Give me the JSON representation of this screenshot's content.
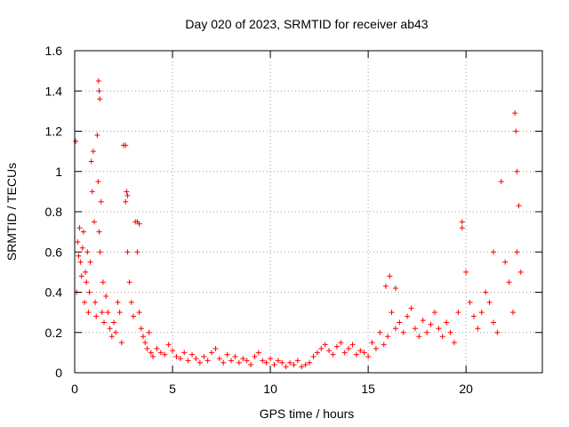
{
  "chart_data": {
    "type": "scatter",
    "title": "Day 020 of 2023, SRMTID for receiver ab43",
    "xlabel": "GPS time / hours",
    "ylabel": "SRMTID / TECUs",
    "xlim": [
      0,
      23.9
    ],
    "ylim": [
      0,
      1.6
    ],
    "xticks": [
      0,
      5,
      10,
      15,
      20
    ],
    "xtick_labels": [
      "0",
      "5",
      "10",
      "15",
      "20"
    ],
    "yticks": [
      0,
      0.2,
      0.4,
      0.6,
      0.8,
      1,
      1.2,
      1.4,
      1.6
    ],
    "ytick_labels": [
      "0",
      "0.2",
      "0.4",
      "0.6",
      "0.8",
      "1",
      "1.2",
      "1.4",
      "1.6"
    ],
    "grid": true,
    "marker": "+",
    "marker_color": "#ff0000",
    "series": [
      {
        "name": "SRMTID",
        "color": "#ff0000",
        "x": [
          0.05,
          0.1,
          0.15,
          0.2,
          0.25,
          0.3,
          0.35,
          0.4,
          0.45,
          0.5,
          0.55,
          0.6,
          0.65,
          0.7,
          0.75,
          0.8,
          0.85,
          0.9,
          0.95,
          1.0,
          1.05,
          1.1,
          1.15,
          1.2,
          1.25,
          1.3,
          1.35,
          1.4,
          1.45,
          1.5,
          1.6,
          1.7,
          1.8,
          1.9,
          2.0,
          2.1,
          2.2,
          2.3,
          2.4,
          2.5,
          2.6,
          2.7,
          2.8,
          2.9,
          3.0,
          3.1,
          3.2,
          3.3,
          3.4,
          3.5,
          3.6,
          3.7,
          3.8,
          3.9,
          4.0,
          4.2,
          4.4,
          4.6,
          4.8,
          5.0,
          5.2,
          5.4,
          5.6,
          5.8,
          6.0,
          6.2,
          6.4,
          6.6,
          6.8,
          7.0,
          7.2,
          7.4,
          7.6,
          7.8,
          8.0,
          8.2,
          8.4,
          8.6,
          8.8,
          9.0,
          9.2,
          9.4,
          9.6,
          9.8,
          10.0,
          10.2,
          10.4,
          10.6,
          10.8,
          11.0,
          11.2,
          11.4,
          11.6,
          11.8,
          12.0,
          12.2,
          12.4,
          12.6,
          12.8,
          13.0,
          13.2,
          13.4,
          13.6,
          13.8,
          14.0,
          14.2,
          14.4,
          14.6,
          14.8,
          15.0,
          15.2,
          15.4,
          15.6,
          15.8,
          16.0,
          16.2,
          16.4,
          16.6,
          16.8,
          17.0,
          17.2,
          17.4,
          17.6,
          17.8,
          18.0,
          18.2,
          18.4,
          18.6,
          18.8,
          19.0,
          19.2,
          19.4,
          19.6,
          19.8,
          20.0,
          20.2,
          20.4,
          20.6,
          20.8,
          21.0,
          21.2,
          21.4,
          21.6,
          21.8,
          22.0,
          22.2,
          22.4,
          22.6,
          22.8,
          1.22,
          1.25,
          1.28,
          2.6,
          2.65,
          2.7,
          3.2,
          3.3,
          15.9,
          16.1,
          16.4,
          19.8,
          21.4,
          22.5,
          22.55,
          22.6,
          22.7
        ],
        "y": [
          1.15,
          0.4,
          0.65,
          0.58,
          0.72,
          0.55,
          0.48,
          0.62,
          0.7,
          0.35,
          0.5,
          0.45,
          0.6,
          0.3,
          0.4,
          0.55,
          1.05,
          0.9,
          1.1,
          0.75,
          0.35,
          0.28,
          1.18,
          0.95,
          0.7,
          0.6,
          0.85,
          0.3,
          0.45,
          0.25,
          0.38,
          0.3,
          0.22,
          0.18,
          0.25,
          0.2,
          0.35,
          0.3,
          0.15,
          1.13,
          0.85,
          0.6,
          0.45,
          0.35,
          0.28,
          0.75,
          0.6,
          0.3,
          0.22,
          0.18,
          0.15,
          0.12,
          0.2,
          0.1,
          0.08,
          0.12,
          0.1,
          0.09,
          0.14,
          0.11,
          0.08,
          0.07,
          0.1,
          0.06,
          0.09,
          0.07,
          0.05,
          0.08,
          0.06,
          0.1,
          0.12,
          0.07,
          0.05,
          0.09,
          0.06,
          0.08,
          0.05,
          0.07,
          0.06,
          0.04,
          0.08,
          0.1,
          0.06,
          0.05,
          0.07,
          0.04,
          0.06,
          0.05,
          0.03,
          0.05,
          0.04,
          0.06,
          0.03,
          0.04,
          0.05,
          0.08,
          0.1,
          0.12,
          0.14,
          0.11,
          0.09,
          0.13,
          0.15,
          0.1,
          0.12,
          0.14,
          0.09,
          0.11,
          0.1,
          0.08,
          0.15,
          0.12,
          0.2,
          0.14,
          0.18,
          0.3,
          0.22,
          0.25,
          0.2,
          0.28,
          0.32,
          0.22,
          0.18,
          0.26,
          0.2,
          0.24,
          0.3,
          0.22,
          0.18,
          0.25,
          0.2,
          0.15,
          0.3,
          0.75,
          0.5,
          0.35,
          0.28,
          0.22,
          0.3,
          0.4,
          0.35,
          0.25,
          0.2,
          0.95,
          0.55,
          0.45,
          0.3,
          0.6,
          0.5,
          1.45,
          1.4,
          1.36,
          1.13,
          0.9,
          0.88,
          0.75,
          0.74,
          0.43,
          0.48,
          0.42,
          0.72,
          0.6,
          1.29,
          1.2,
          1.0,
          0.83
        ]
      }
    ]
  }
}
